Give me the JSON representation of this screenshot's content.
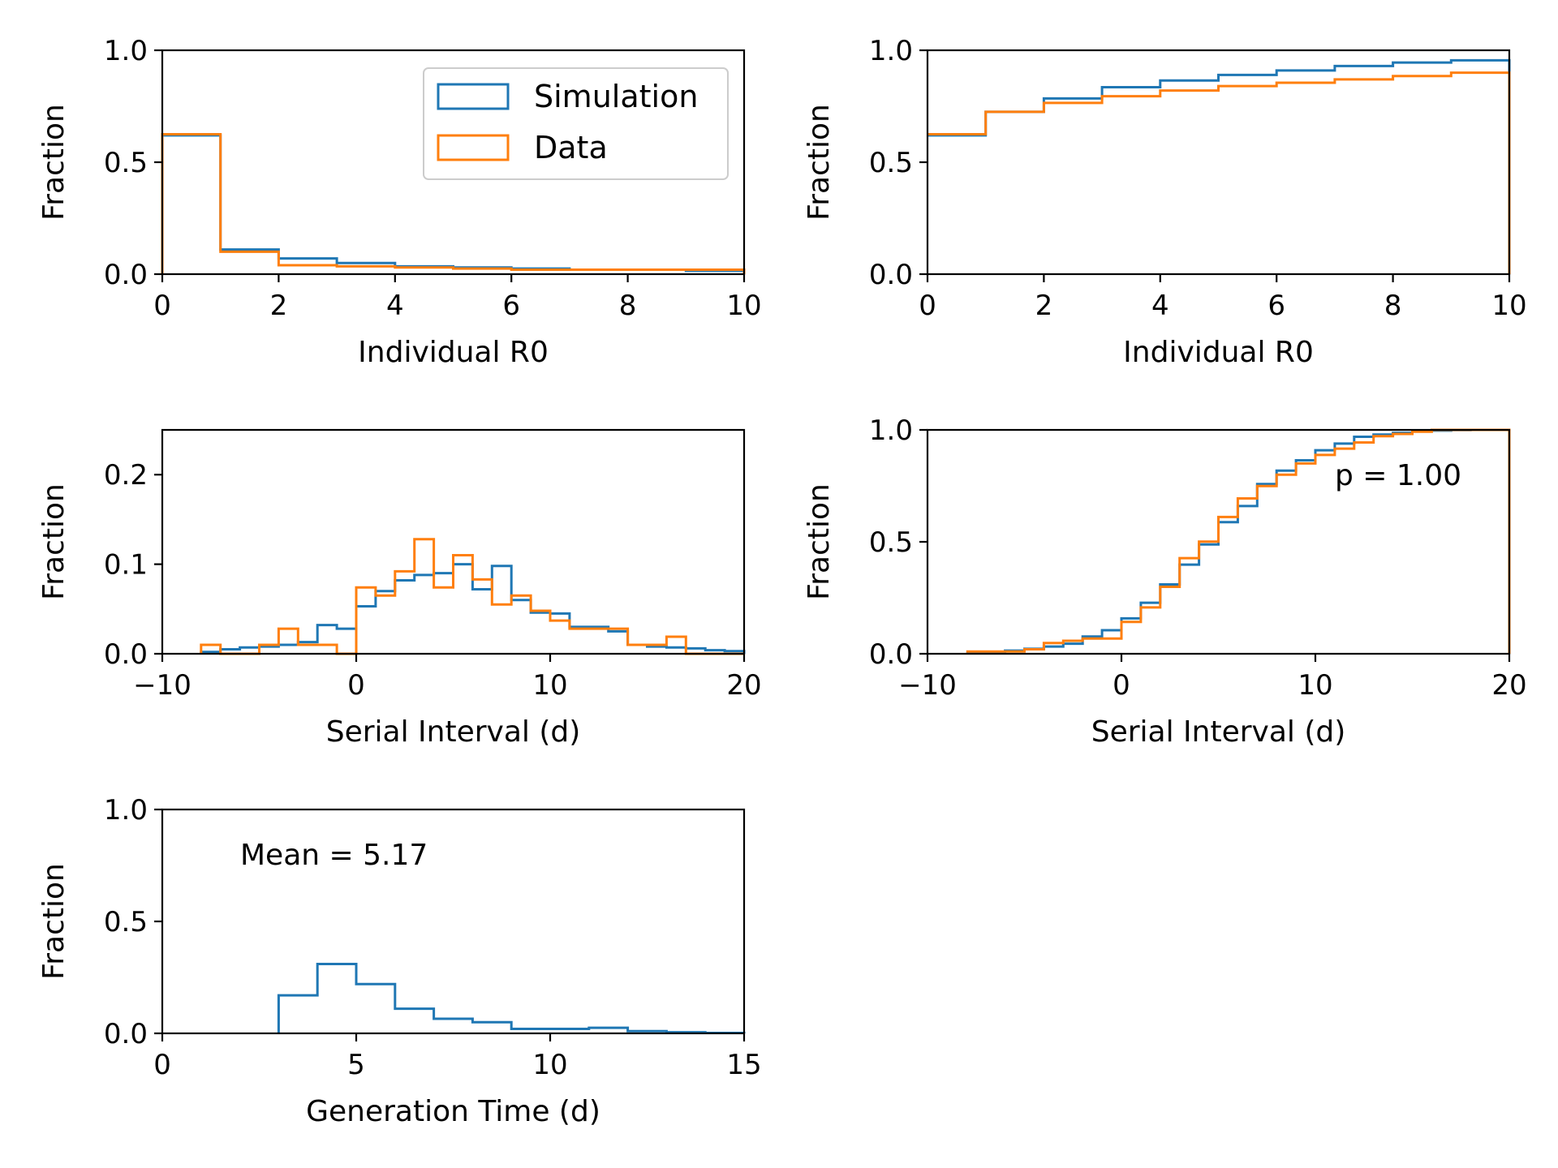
{
  "colors": {
    "simulation": "#1f77b4",
    "data": "#ff7f0e"
  },
  "legend": {
    "placement": "top-right",
    "entries": [
      "Simulation",
      "Data"
    ]
  },
  "chart_data": [
    {
      "id": "r0-hist",
      "type": "step-histogram",
      "xlabel": "Individual R0",
      "ylabel": "Fraction",
      "xlim": [
        0,
        10
      ],
      "ylim": [
        0,
        1.0
      ],
      "xticks": [
        "0",
        "2",
        "4",
        "6",
        "8",
        "10"
      ],
      "yticks": [
        "0.0",
        "0.5",
        "1.0"
      ],
      "bin_edges": [
        0,
        1,
        2,
        3,
        4,
        5,
        6,
        7,
        8,
        9,
        10
      ],
      "series": [
        {
          "name": "Simulation",
          "color": "#1f77b4",
          "values": [
            0.62,
            0.11,
            0.07,
            0.05,
            0.035,
            0.03,
            0.025,
            0.02,
            0.02,
            0.015
          ]
        },
        {
          "name": "Data",
          "color": "#ff7f0e",
          "values": [
            0.625,
            0.1,
            0.04,
            0.035,
            0.03,
            0.025,
            0.02,
            0.02,
            0.02,
            0.02
          ]
        }
      ],
      "legend": true
    },
    {
      "id": "r0-cdf",
      "type": "step-cdf",
      "xlabel": "Individual R0",
      "ylabel": "Fraction",
      "xlim": [
        0,
        10
      ],
      "ylim": [
        0,
        1.0
      ],
      "xticks": [
        "0",
        "2",
        "4",
        "6",
        "8",
        "10"
      ],
      "yticks": [
        "0.0",
        "0.5",
        "1.0"
      ],
      "bin_edges": [
        0,
        1,
        2,
        3,
        4,
        5,
        6,
        7,
        8,
        9,
        10
      ],
      "series": [
        {
          "name": "Simulation",
          "color": "#1f77b4",
          "values": [
            0.62,
            0.725,
            0.785,
            0.835,
            0.865,
            0.89,
            0.91,
            0.93,
            0.945,
            0.955
          ]
        },
        {
          "name": "Data",
          "color": "#ff7f0e",
          "values": [
            0.625,
            0.725,
            0.765,
            0.795,
            0.82,
            0.84,
            0.855,
            0.87,
            0.885,
            0.9
          ]
        }
      ]
    },
    {
      "id": "si-hist",
      "type": "step-histogram",
      "xlabel": "Serial Interval (d)",
      "ylabel": "Fraction",
      "xlim": [
        -10,
        20
      ],
      "ylim": [
        0,
        0.25
      ],
      "xticks": [
        "−10",
        "0",
        "10",
        "20"
      ],
      "xtick_values": [
        -10,
        0,
        10,
        20
      ],
      "yticks": [
        "0.0",
        "0.1",
        "0.2"
      ],
      "ytick_values": [
        0,
        0.1,
        0.2
      ],
      "bin_edges": [
        -8,
        -7,
        -6,
        -5,
        -4,
        -3,
        -2,
        -1,
        0,
        1,
        2,
        3,
        4,
        5,
        6,
        7,
        8,
        9,
        10,
        11,
        12,
        13,
        14,
        15,
        16,
        17,
        18,
        19,
        20
      ],
      "series": [
        {
          "name": "Simulation",
          "color": "#1f77b4",
          "values": [
            0.002,
            0.005,
            0.007,
            0.008,
            0.01,
            0.013,
            0.032,
            0.028,
            0.053,
            0.07,
            0.082,
            0.088,
            0.09,
            0.1,
            0.072,
            0.098,
            0.06,
            0.046,
            0.045,
            0.03,
            0.03,
            0.025,
            0.01,
            0.008,
            0.007,
            0.006,
            0.004,
            0.003
          ]
        },
        {
          "name": "Data",
          "color": "#ff7f0e",
          "values": [
            0.01,
            0.0,
            0.0,
            0.01,
            0.028,
            0.01,
            0.01,
            0.0,
            0.074,
            0.065,
            0.092,
            0.128,
            0.074,
            0.11,
            0.083,
            0.055,
            0.065,
            0.048,
            0.037,
            0.028,
            0.028,
            0.028,
            0.01,
            0.01,
            0.019,
            0.0,
            0.0,
            0.0
          ]
        }
      ]
    },
    {
      "id": "si-cdf",
      "type": "step-cdf",
      "xlabel": "Serial Interval (d)",
      "ylabel": "Fraction",
      "xlim": [
        -10,
        20
      ],
      "ylim": [
        0,
        1.0
      ],
      "xticks": [
        "−10",
        "0",
        "10",
        "20"
      ],
      "xtick_values": [
        -10,
        0,
        10,
        20
      ],
      "yticks": [
        "0.0",
        "0.5",
        "1.0"
      ],
      "ytick_values": [
        0,
        0.5,
        1.0
      ],
      "bin_edges": [
        -8,
        -7,
        -6,
        -5,
        -4,
        -3,
        -2,
        -1,
        0,
        1,
        2,
        3,
        4,
        5,
        6,
        7,
        8,
        9,
        10,
        11,
        12,
        13,
        14,
        15,
        16,
        17,
        18,
        19,
        20
      ],
      "series": [
        {
          "name": "Simulation",
          "color": "#1f77b4",
          "values": [
            0.002,
            0.007,
            0.014,
            0.022,
            0.032,
            0.045,
            0.077,
            0.105,
            0.158,
            0.228,
            0.31,
            0.398,
            0.488,
            0.588,
            0.66,
            0.758,
            0.818,
            0.864,
            0.909,
            0.939,
            0.969,
            0.979,
            0.987,
            0.994,
            0.997,
            0.999,
            1.0,
            1.0
          ]
        },
        {
          "name": "Data",
          "color": "#ff7f0e",
          "values": [
            0.01,
            0.01,
            0.01,
            0.02,
            0.048,
            0.058,
            0.068,
            0.068,
            0.142,
            0.207,
            0.299,
            0.427,
            0.501,
            0.611,
            0.694,
            0.749,
            0.8,
            0.85,
            0.888,
            0.916,
            0.944,
            0.972,
            0.982,
            0.992,
            1.0,
            1.0,
            1.0,
            1.0
          ]
        }
      ],
      "annotation": "p = 1.00"
    },
    {
      "id": "gt-hist",
      "type": "step-histogram",
      "xlabel": "Generation Time (d)",
      "ylabel": "Fraction",
      "xlim": [
        0,
        15
      ],
      "ylim": [
        0,
        1.0
      ],
      "xticks": [
        "0",
        "5",
        "10",
        "15"
      ],
      "xtick_values": [
        0,
        5,
        10,
        15
      ],
      "yticks": [
        "0.0",
        "0.5",
        "1.0"
      ],
      "ytick_values": [
        0,
        0.5,
        1.0
      ],
      "bin_edges": [
        3,
        4,
        5,
        6,
        7,
        8,
        9,
        10,
        11,
        12,
        13,
        14,
        15
      ],
      "series": [
        {
          "name": "Simulation",
          "color": "#1f77b4",
          "values": [
            0.17,
            0.31,
            0.22,
            0.11,
            0.065,
            0.05,
            0.02,
            0.02,
            0.025,
            0.01,
            0.005,
            0.002
          ]
        }
      ],
      "annotation": "Mean = 5.17"
    }
  ]
}
